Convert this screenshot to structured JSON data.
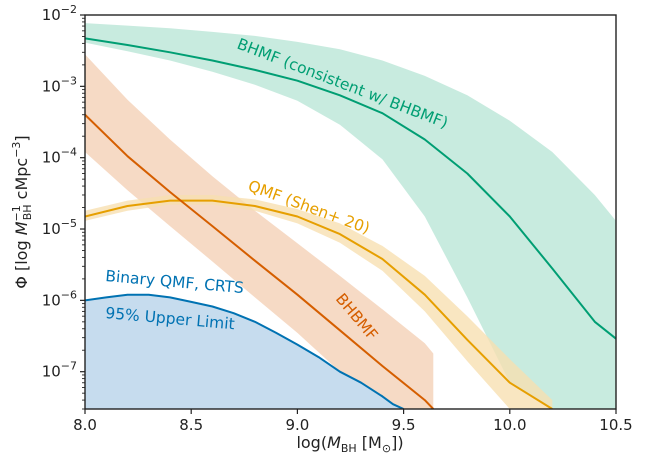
{
  "chart_data": {
    "type": "line",
    "xlabel_prefix": "log(",
    "xlabel_M": "M",
    "xlabel_sub": "BH",
    "xlabel_unit": " [M",
    "xlabel_sun": "⊙",
    "xlabel_close": "])",
    "ylabel_parts": {
      "phi": "Φ [log ",
      "M": "M",
      "sup": "−1",
      "sub": "BH",
      "rest": " cMpc",
      "sup2": "−3",
      "close": "]"
    },
    "y_scale": "log",
    "xlim": [
      8.0,
      10.5
    ],
    "ylim": [
      3e-08,
      0.01
    ],
    "x_ticks": [
      8.0,
      8.5,
      9.0,
      9.5,
      10.0,
      10.5
    ],
    "x_tick_labels": [
      "8.0",
      "8.5",
      "9.0",
      "9.5",
      "10.0",
      "10.5"
    ],
    "y_ticks": [
      {
        "base": "10",
        "exp": "−2",
        "value": 0.01
      },
      {
        "base": "10",
        "exp": "−3",
        "value": 0.001
      },
      {
        "base": "10",
        "exp": "−4",
        "value": 0.0001
      },
      {
        "base": "10",
        "exp": "−5",
        "value": 1e-05
      },
      {
        "base": "10",
        "exp": "−6",
        "value": 1e-06
      },
      {
        "base": "10",
        "exp": "−7",
        "value": 1e-07
      }
    ],
    "grid": false,
    "series": [
      {
        "name": "BHMF (consistent w/ BHBMF)",
        "color": "#009e73",
        "band_color": "#b8e6d6",
        "x": [
          8.0,
          8.2,
          8.4,
          8.6,
          8.8,
          9.0,
          9.2,
          9.4,
          9.6,
          9.8,
          10.0,
          10.2,
          10.4,
          10.5
        ],
        "y": [
          0.0047,
          0.0038,
          0.003,
          0.0023,
          0.0017,
          0.0012,
          0.00075,
          0.00042,
          0.00018,
          6e-05,
          1.5e-05,
          2.8e-06,
          5e-07,
          2.9e-07
        ],
        "lower": [
          0.0041,
          0.0031,
          0.0023,
          0.0016,
          0.00105,
          0.00063,
          0.00029,
          9.5e-05,
          1.5e-05,
          1.1e-06,
          7e-08,
          3e-08,
          3e-08,
          3e-08
        ],
        "upper": [
          0.0077,
          0.0071,
          0.0065,
          0.0058,
          0.0051,
          0.0042,
          0.0033,
          0.0023,
          0.0014,
          0.00075,
          0.00033,
          0.00012,
          3e-05,
          1.3e-05
        ]
      },
      {
        "name": "QMF (Shen+ 20)",
        "color": "#e69f00",
        "band_color": "#f7dfb0",
        "x": [
          8.0,
          8.2,
          8.4,
          8.6,
          8.8,
          9.0,
          9.2,
          9.4,
          9.6,
          9.8,
          10.0,
          10.2
        ],
        "y": [
          1.5e-05,
          2.1e-05,
          2.5e-05,
          2.5e-05,
          2.1e-05,
          1.5e-05,
          8.5e-06,
          3.8e-06,
          1.2e-06,
          2.8e-07,
          7e-08,
          3e-08
        ],
        "lower": [
          1.3e-05,
          1.8e-05,
          2.2e-05,
          2.2e-05,
          1.8e-05,
          1.2e-05,
          6.4e-06,
          2.6e-06,
          7e-07,
          1.4e-07,
          3e-08,
          3e-08
        ],
        "upper": [
          1.8e-05,
          2.5e-05,
          3e-05,
          3e-05,
          2.6e-05,
          1.9e-05,
          1.2e-05,
          5.8e-06,
          2.2e-06,
          6e-07,
          1.5e-07,
          4e-08
        ]
      },
      {
        "name": "BHBMF",
        "color": "#d55e00",
        "band_color": "#f4cfb5",
        "x": [
          8.0,
          8.2,
          8.4,
          8.6,
          8.8,
          9.0,
          9.2,
          9.4,
          9.6,
          9.64
        ],
        "y": [
          0.0004,
          0.000105,
          3.3e-05,
          1.1e-05,
          3.6e-06,
          1.2e-06,
          3.8e-07,
          1.2e-07,
          4e-08,
          3e-08
        ],
        "lower": [
          0.00012,
          3.5e-05,
          1.1e-05,
          3.5e-06,
          1.1e-06,
          3.5e-07,
          1e-07,
          3e-08,
          3e-08,
          3e-08
        ],
        "upper": [
          0.0028,
          0.00065,
          0.00018,
          5.5e-05,
          1.8e-05,
          6.3e-06,
          2.2e-06,
          7.5e-07,
          2.5e-07,
          1.8e-07
        ]
      },
      {
        "name": "Binary QMF, CRTS 95% Upper Limit",
        "color": "#0072b2",
        "band_color": "#c6dcee",
        "x": [
          8.0,
          8.1,
          8.2,
          8.3,
          8.4,
          8.5,
          8.6,
          8.7,
          8.8,
          8.9,
          9.0,
          9.1,
          9.2,
          9.3,
          9.4,
          9.45,
          9.5
        ],
        "y": [
          1e-06,
          1.1e-06,
          1.2e-06,
          1.2e-06,
          1.1e-06,
          9.5e-07,
          8.2e-07,
          6.6e-07,
          5e-07,
          3.5e-07,
          2.4e-07,
          1.6e-07,
          1e-07,
          7e-08,
          4.5e-08,
          3.5e-08,
          3e-08
        ]
      }
    ],
    "annotations": {
      "bhmf": "BHMF (consistent w/ BHBMF)",
      "qmf": "QMF (Shen+ 20)",
      "bhbmf": "BHBMF",
      "binary_line1": "Binary QMF, CRTS",
      "binary_line2": "95% Upper Limit"
    }
  }
}
